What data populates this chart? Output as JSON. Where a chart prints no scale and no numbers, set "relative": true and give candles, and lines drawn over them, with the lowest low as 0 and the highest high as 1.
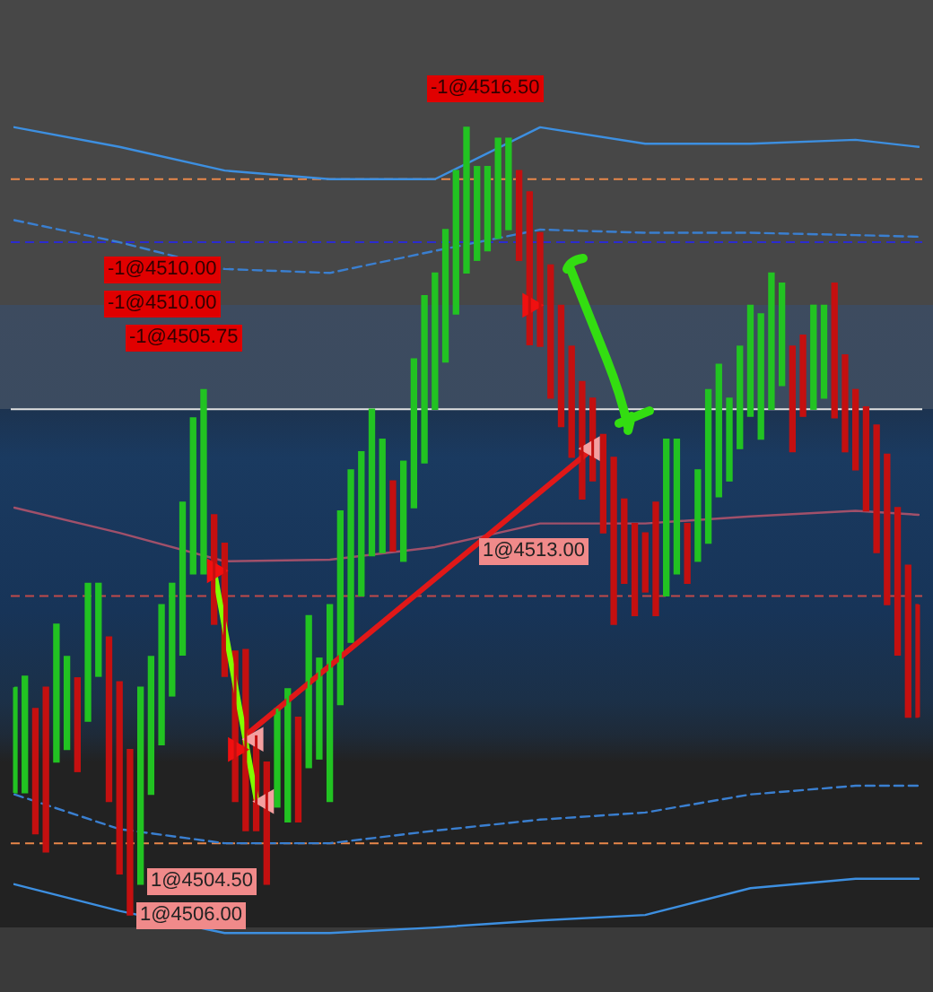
{
  "chart_data": {
    "type": "candlestick",
    "relative": true,
    "tick_labels": false,
    "legend": false,
    "categories": [
      null,
      null,
      null,
      null,
      null,
      null,
      null,
      null,
      null,
      null,
      null,
      null,
      null,
      null,
      null,
      null,
      null,
      null,
      null,
      null,
      null,
      null,
      null,
      null,
      null,
      null,
      null,
      null,
      null,
      null,
      null,
      null,
      null,
      null,
      null,
      null,
      null,
      null,
      null,
      null,
      null,
      null,
      null,
      null,
      null,
      null,
      null,
      null,
      null,
      null,
      null,
      null,
      null,
      null,
      null,
      null,
      null,
      null,
      null,
      null,
      null,
      null,
      null,
      null,
      null,
      null,
      null,
      null,
      null,
      null,
      null,
      null,
      null,
      null,
      null,
      null,
      null,
      null,
      null,
      null,
      null,
      null,
      null,
      null,
      null,
      null,
      null
    ],
    "ohlc": [
      [
        0.155,
        0.289,
        0.155,
        0.289
      ],
      [
        0.155,
        0.303,
        0.155,
        0.303
      ],
      [
        0.262,
        0.262,
        0.103,
        0.103
      ],
      [
        0.289,
        0.289,
        0.08,
        0.08
      ],
      [
        0.194,
        0.369,
        0.194,
        0.369
      ],
      [
        0.21,
        0.328,
        0.21,
        0.328
      ],
      [
        0.301,
        0.301,
        0.182,
        0.182
      ],
      [
        0.246,
        0.421,
        0.246,
        0.421
      ],
      [
        0.303,
        0.421,
        0.303,
        0.421
      ],
      [
        0.353,
        0.353,
        0.144,
        0.144
      ],
      [
        0.296,
        0.296,
        0.052,
        0.052
      ],
      [
        0.21,
        0.21,
        0,
        0
      ],
      [
        0.039,
        0.289,
        0.039,
        0.289
      ],
      [
        0.153,
        0.328,
        0.153,
        0.328
      ],
      [
        0.216,
        0.394,
        0.216,
        0.394
      ],
      [
        0.278,
        0.421,
        0.278,
        0.421
      ],
      [
        0.33,
        0.524,
        0.33,
        0.524
      ],
      [
        0.433,
        0.631,
        0.433,
        0.631
      ],
      [
        0.433,
        0.667,
        0.433,
        0.667
      ],
      [
        0.508,
        0.508,
        0.369,
        0.369
      ],
      [
        0.472,
        0.472,
        0.303,
        0.303
      ],
      [
        0.335,
        0.335,
        0.144,
        0.144
      ],
      [
        0.337,
        0.337,
        0.107,
        0.107
      ],
      [
        0.228,
        0.228,
        0.107,
        0.107
      ],
      [
        0.194,
        0.194,
        0.039,
        0.039
      ],
      [
        0.137,
        0.262,
        0.137,
        0.262
      ],
      [
        0.118,
        0.287,
        0.118,
        0.287
      ],
      [
        0.251,
        0.251,
        0.118,
        0.118
      ],
      [
        0.187,
        0.38,
        0.187,
        0.38
      ],
      [
        0.198,
        0.326,
        0.198,
        0.326
      ],
      [
        0.144,
        0.394,
        0.144,
        0.394
      ],
      [
        0.267,
        0.513,
        0.267,
        0.513
      ],
      [
        0.346,
        0.565,
        0.346,
        0.565
      ],
      [
        0.405,
        0.588,
        0.405,
        0.588
      ],
      [
        0.456,
        0.642,
        0.456,
        0.642
      ],
      [
        0.46,
        0.604,
        0.46,
        0.604
      ],
      [
        0.551,
        0.551,
        0.462,
        0.462
      ],
      [
        0.449,
        0.576,
        0.449,
        0.576
      ],
      [
        0.517,
        0.706,
        0.517,
        0.706
      ],
      [
        0.574,
        0.786,
        0.574,
        0.786
      ],
      [
        0.642,
        0.815,
        0.642,
        0.815
      ],
      [
        0.702,
        0.87,
        0.702,
        0.87
      ],
      [
        0.763,
        0.945,
        0.763,
        0.945
      ],
      [
        0.815,
        1,
        0.815,
        1
      ],
      [
        0.831,
        0.95,
        0.831,
        0.95
      ],
      [
        0.843,
        0.95,
        0.843,
        0.95
      ],
      [
        0.859,
        0.986,
        0.859,
        0.986
      ],
      [
        0.87,
        0.986,
        0.87,
        0.986
      ],
      [
        0.945,
        0.945,
        0.831,
        0.831
      ],
      [
        0.918,
        0.918,
        0.724,
        0.724
      ],
      [
        0.866,
        0.866,
        0.722,
        0.722
      ],
      [
        0.825,
        0.825,
        0.656,
        0.656
      ],
      [
        0.774,
        0.774,
        0.62,
        0.62
      ],
      [
        0.722,
        0.722,
        0.581,
        0.581
      ],
      [
        0.677,
        0.677,
        0.528,
        0.528
      ],
      [
        0.656,
        0.656,
        0.551,
        0.551
      ],
      [
        0.61,
        0.61,
        0.485,
        0.485
      ],
      [
        0.581,
        0.581,
        0.369,
        0.369
      ],
      [
        0.528,
        0.528,
        0.421,
        0.421
      ],
      [
        0.497,
        0.497,
        0.38,
        0.38
      ],
      [
        0.485,
        0.485,
        0.41,
        0.41
      ],
      [
        0.524,
        0.524,
        0.38,
        0.38
      ],
      [
        0.405,
        0.604,
        0.405,
        0.604
      ],
      [
        0.433,
        0.604,
        0.433,
        0.604
      ],
      [
        0.497,
        0.497,
        0.421,
        0.421
      ],
      [
        0.449,
        0.565,
        0.449,
        0.565
      ],
      [
        0.472,
        0.667,
        0.472,
        0.667
      ],
      [
        0.531,
        0.699,
        0.531,
        0.699
      ],
      [
        0.551,
        0.656,
        0.551,
        0.656
      ],
      [
        0.592,
        0.722,
        0.592,
        0.722
      ],
      [
        0.633,
        0.774,
        0.633,
        0.774
      ],
      [
        0.604,
        0.763,
        0.604,
        0.763
      ],
      [
        0.642,
        0.815,
        0.642,
        0.815
      ],
      [
        0.672,
        0.802,
        0.672,
        0.802
      ],
      [
        0.722,
        0.722,
        0.588,
        0.588
      ],
      [
        0.736,
        0.736,
        0.633,
        0.633
      ],
      [
        0.642,
        0.774,
        0.642,
        0.774
      ],
      [
        0.656,
        0.774,
        0.656,
        0.774
      ],
      [
        0.802,
        0.802,
        0.631,
        0.631
      ],
      [
        0.711,
        0.711,
        0.588,
        0.588
      ],
      [
        0.667,
        0.667,
        0.565,
        0.565
      ],
      [
        0.645,
        0.645,
        0.513,
        0.513
      ],
      [
        0.622,
        0.622,
        0.46,
        0.46
      ],
      [
        0.585,
        0.585,
        0.394,
        0.394
      ],
      [
        0.517,
        0.517,
        0.33,
        0.33
      ],
      [
        0.444,
        0.444,
        0.251,
        0.251
      ],
      [
        0.394,
        0.394,
        0.251,
        0.251
      ]
    ],
    "colors": [
      "#22c322",
      "#22c322",
      "#c41010",
      "#c41010",
      "#22c322",
      "#22c322",
      "#c41010",
      "#22c322",
      "#22c322",
      "#c41010",
      "#c41010",
      "#c41010",
      "#22c322",
      "#22c322",
      "#22c322",
      "#22c322",
      "#22c322",
      "#22c322",
      "#22c322",
      "#c41010",
      "#c41010",
      "#c41010",
      "#c41010",
      "#c41010",
      "#c41010",
      "#22c322",
      "#22c322",
      "#c41010",
      "#22c322",
      "#22c322",
      "#22c322",
      "#22c322",
      "#22c322",
      "#22c322",
      "#22c322",
      "#22c322",
      "#c41010",
      "#22c322",
      "#22c322",
      "#22c322",
      "#22c322",
      "#22c322",
      "#22c322",
      "#22c322",
      "#22c322",
      "#22c322",
      "#22c322",
      "#22c322",
      "#c41010",
      "#c41010",
      "#c41010",
      "#c41010",
      "#c41010",
      "#c41010",
      "#c41010",
      "#c41010",
      "#c41010",
      "#c41010",
      "#c41010",
      "#c41010",
      "#c41010",
      "#c41010",
      "#22c322",
      "#22c322",
      "#c41010",
      "#22c322",
      "#22c322",
      "#22c322",
      "#22c322",
      "#22c322",
      "#22c322",
      "#22c322",
      "#22c322",
      "#22c322",
      "#c41010",
      "#c41010",
      "#22c322",
      "#22c322",
      "#c41010",
      "#c41010",
      "#c41010",
      "#c41010",
      "#c41010",
      "#c41010",
      "#c41010",
      "#c41010",
      "#c41010"
    ],
    "series": [
      {
        "type": "line",
        "color": "#3d8fe0",
        "line_style": "solid",
        "values": [
          1,
          null,
          null,
          null,
          null,
          null,
          null,
          null,
          null,
          null,
          0.975,
          null,
          null,
          null,
          null,
          null,
          null,
          null,
          null,
          null,
          0.945,
          null,
          null,
          null,
          null,
          null,
          null,
          null,
          null,
          null,
          0.934,
          null,
          null,
          null,
          null,
          null,
          null,
          null,
          null,
          null,
          0.934,
          null,
          null,
          null,
          null,
          null,
          null,
          null,
          null,
          null,
          1,
          null,
          null,
          null,
          null,
          null,
          null,
          null,
          null,
          null,
          0.979,
          null,
          null,
          null,
          null,
          null,
          null,
          null,
          null,
          null,
          0.979,
          null,
          null,
          null,
          null,
          null,
          null,
          null,
          null,
          null,
          0.984,
          null,
          null,
          null,
          null,
          null,
          0.975
        ]
      },
      {
        "type": "line",
        "color": "#3a7fd0",
        "line_style": "dashed",
        "values": [
          0.882,
          null,
          null,
          null,
          null,
          null,
          null,
          null,
          null,
          null,
          0.854,
          null,
          null,
          null,
          null,
          null,
          null,
          null,
          null,
          null,
          0.82,
          null,
          null,
          null,
          null,
          null,
          null,
          null,
          null,
          null,
          0.815,
          null,
          null,
          null,
          null,
          null,
          null,
          null,
          null,
          null,
          0.843,
          null,
          null,
          null,
          null,
          null,
          null,
          null,
          null,
          null,
          0.87,
          null,
          null,
          null,
          null,
          null,
          null,
          null,
          null,
          null,
          0.866,
          null,
          null,
          null,
          null,
          null,
          null,
          null,
          null,
          null,
          0.866,
          null,
          null,
          null,
          null,
          null,
          null,
          null,
          null,
          null,
          0.863,
          null,
          null,
          null,
          null,
          null,
          0.861
        ]
      },
      {
        "type": "line",
        "color": "#a0506a",
        "line_style": "solid",
        "values": [
          0.517,
          null,
          null,
          null,
          null,
          null,
          null,
          null,
          null,
          null,
          0.485,
          null,
          null,
          null,
          null,
          null,
          null,
          null,
          null,
          null,
          0.449,
          null,
          null,
          null,
          null,
          null,
          null,
          null,
          null,
          null,
          0.451,
          null,
          null,
          null,
          null,
          null,
          null,
          null,
          null,
          null,
          0.467,
          null,
          null,
          null,
          null,
          null,
          null,
          null,
          null,
          null,
          0.497,
          null,
          null,
          null,
          null,
          null,
          null,
          null,
          null,
          null,
          0.497,
          null,
          null,
          null,
          null,
          null,
          null,
          null,
          null,
          null,
          0.506,
          null,
          null,
          null,
          null,
          null,
          null,
          null,
          null,
          null,
          0.513,
          null,
          null,
          null,
          null,
          null,
          0.508
        ]
      },
      {
        "type": "line",
        "color": "#3a7fd0",
        "line_style": "dashed",
        "values": [
          0.153,
          null,
          null,
          null,
          null,
          null,
          null,
          null,
          null,
          null,
          0.109,
          null,
          null,
          null,
          null,
          null,
          null,
          null,
          null,
          null,
          0.091,
          null,
          null,
          null,
          null,
          null,
          null,
          null,
          null,
          null,
          0.091,
          null,
          null,
          null,
          null,
          null,
          null,
          null,
          null,
          null,
          0.107,
          null,
          null,
          null,
          null,
          null,
          null,
          null,
          null,
          null,
          0.121,
          null,
          null,
          null,
          null,
          null,
          null,
          null,
          null,
          null,
          0.13,
          null,
          null,
          null,
          null,
          null,
          null,
          null,
          null,
          null,
          0.153,
          null,
          null,
          null,
          null,
          null,
          null,
          null,
          null,
          null,
          0.164,
          null,
          null,
          null,
          null,
          null,
          0.164
        ]
      },
      {
        "type": "line",
        "color": "#3d8fe0",
        "line_style": "solid",
        "values": [
          0.039,
          null,
          null,
          null,
          null,
          null,
          null,
          null,
          null,
          null,
          0.005,
          null,
          null,
          null,
          null,
          null,
          null,
          null,
          null,
          null,
          -0.023,
          null,
          null,
          null,
          null,
          null,
          null,
          null,
          null,
          null,
          -0.023,
          null,
          null,
          null,
          null,
          null,
          null,
          null,
          null,
          null,
          -0.016,
          null,
          null,
          null,
          null,
          null,
          null,
          null,
          null,
          null,
          -0.007,
          null,
          null,
          null,
          null,
          null,
          null,
          null,
          null,
          null,
          0,
          null,
          null,
          null,
          null,
          null,
          null,
          null,
          null,
          null,
          0.034,
          null,
          null,
          null,
          null,
          null,
          null,
          null,
          null,
          null,
          0.046,
          null,
          null,
          null,
          null,
          null,
          0.046
        ]
      },
      {
        "type": "line",
        "color": "#7fff00",
        "line_style": "solid",
        "values": [
          null,
          null,
          null,
          null,
          null,
          null,
          null,
          null,
          null,
          null,
          null,
          null,
          null,
          null,
          null,
          null,
          null,
          null,
          null,
          0.437,
          null,
          null,
          null,
          0.148,
          null,
          null,
          null,
          null,
          null,
          null,
          null,
          null,
          null,
          null,
          null,
          null,
          null,
          null,
          null,
          null,
          null,
          null,
          null,
          null,
          null,
          null,
          null,
          null,
          null,
          null,
          null,
          null,
          null,
          null,
          null,
          null,
          null,
          null,
          null,
          null,
          null,
          null,
          null,
          null,
          null,
          null,
          null,
          null,
          null,
          null,
          null,
          null,
          null,
          null,
          null,
          null,
          null,
          null,
          null,
          null,
          null,
          null,
          null,
          null,
          null,
          null,
          null
        ]
      },
      {
        "type": "line",
        "color": "#e01818",
        "line_style": "solid",
        "values": [
          null,
          null,
          null,
          null,
          null,
          null,
          null,
          null,
          null,
          null,
          null,
          null,
          null,
          null,
          null,
          null,
          null,
          null,
          null,
          null,
          null,
          null,
          0.228,
          null,
          null,
          null,
          null,
          null,
          null,
          null,
          null,
          null,
          null,
          null,
          null,
          null,
          null,
          null,
          null,
          null,
          null,
          null,
          null,
          null,
          null,
          null,
          null,
          null,
          null,
          null,
          null,
          null,
          null,
          null,
          null,
          0.592,
          null,
          null,
          null,
          null,
          null,
          null,
          null,
          null,
          null,
          null,
          null,
          null,
          null,
          null,
          null,
          null,
          null,
          null,
          null,
          null,
          null,
          null,
          null,
          null,
          null,
          null,
          null,
          null,
          null,
          null,
          null
        ]
      },
      {
        "type": "scatter",
        "color": "#f01010",
        "marker": "triangle",
        "values": [
          null,
          null,
          null,
          null,
          null,
          null,
          null,
          null,
          null,
          null,
          null,
          null,
          null,
          null,
          null,
          null,
          null,
          null,
          null,
          0.437,
          null,
          0.21,
          null,
          null,
          null,
          null,
          null,
          null,
          null,
          null,
          null,
          null,
          null,
          null,
          null,
          null,
          null,
          null,
          null,
          null,
          null,
          null,
          null,
          null,
          null,
          null,
          null,
          null,
          null,
          0.774,
          null,
          null,
          null,
          null,
          null,
          null,
          null,
          null,
          null,
          null,
          null,
          null,
          null,
          null,
          null,
          null,
          null,
          null,
          null,
          null,
          null,
          null,
          null,
          null,
          null,
          null,
          null,
          null,
          null,
          null,
          null,
          null,
          null,
          null,
          null,
          null,
          null
        ]
      },
      {
        "type": "scatter",
        "color": "#f4a0a0",
        "marker": "triangle",
        "values": [
          null,
          null,
          null,
          null,
          null,
          null,
          null,
          null,
          null,
          null,
          null,
          null,
          null,
          null,
          null,
          null,
          null,
          null,
          null,
          null,
          null,
          null,
          null,
          0.223,
          0.144,
          null,
          null,
          null,
          null,
          null,
          null,
          null,
          null,
          null,
          null,
          null,
          null,
          null,
          null,
          null,
          null,
          null,
          null,
          null,
          null,
          null,
          null,
          null,
          null,
          null,
          null,
          null,
          null,
          null,
          null,
          0.592,
          null,
          null,
          null,
          null,
          null,
          null,
          null,
          null,
          null,
          null,
          null,
          null,
          null,
          null,
          null,
          null,
          null,
          null,
          null,
          null,
          null,
          null,
          null,
          null,
          null,
          null,
          null,
          null,
          null,
          null,
          null
        ]
      }
    ],
    "ref_lines": [
      {
        "axis": "y",
        "value": 0.934,
        "color": "#e8874a",
        "line_style": "dashed"
      },
      {
        "axis": "y",
        "value": 0.854,
        "color": "#2b2bd0",
        "line_style": "dashed"
      },
      {
        "axis": "y",
        "value": 0.642,
        "color": "#e0e0e0",
        "line_style": "solid"
      },
      {
        "axis": "y",
        "value": 0.405,
        "color": "#c04a4a",
        "line_style": "dashed"
      },
      {
        "axis": "y",
        "value": 0.091,
        "color": "#e8874a",
        "line_style": "dashed"
      }
    ],
    "annotations": [
      "-1@4516.50",
      "-1@4510.00",
      "-1@4510.00",
      "-1@4505.75",
      "1@4513.00",
      "1@4504.50",
      "1@4506.00"
    ]
  }
}
